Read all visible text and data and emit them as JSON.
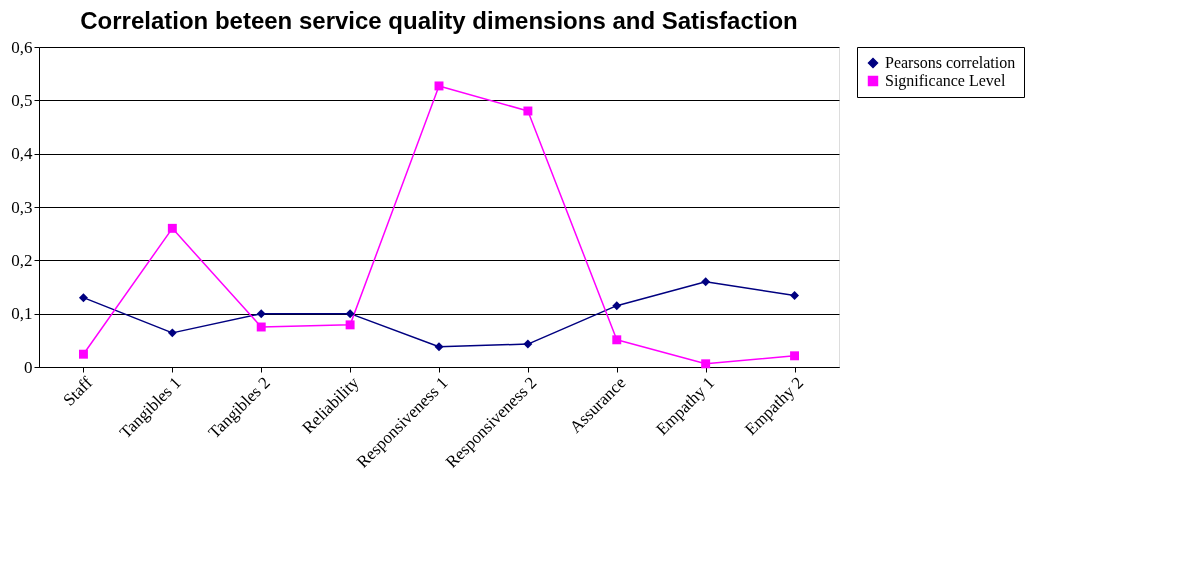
{
  "chart_data": {
    "type": "line",
    "title": "Correlation beteen service quality dimensions and Satisfaction",
    "categories": [
      "Staff",
      "Tangibles 1",
      "Tangibles 2",
      "Reliability",
      "Responsiveness 1",
      "Responsiveness 2",
      "Assurance",
      "Empathy 1",
      "Empathy 2"
    ],
    "series": [
      {
        "name": "Pearsons correlation",
        "color": "#000080",
        "marker": "diamond",
        "values": [
          0.13,
          0.064,
          0.1,
          0.1,
          0.038,
          0.043,
          0.115,
          0.16,
          0.134
        ]
      },
      {
        "name": "Significance Level",
        "color": "#ff00ff",
        "marker": "square",
        "values": [
          0.024,
          0.26,
          0.075,
          0.079,
          0.527,
          0.48,
          0.051,
          0.006,
          0.021
        ]
      }
    ],
    "ylim": [
      0,
      0.6
    ],
    "yticks": [
      0,
      {
        "value": 0.1,
        "label": "0,1"
      },
      {
        "value": 0.2,
        "label": "0,2"
      },
      {
        "value": 0.3,
        "label": "0,3"
      },
      {
        "value": 0.4,
        "label": "0,4"
      },
      {
        "value": 0.5,
        "label": "0,5"
      },
      {
        "value": 0.6,
        "label": "0,6"
      }
    ],
    "grid": "y",
    "legend": "right",
    "line_style": "solid"
  }
}
